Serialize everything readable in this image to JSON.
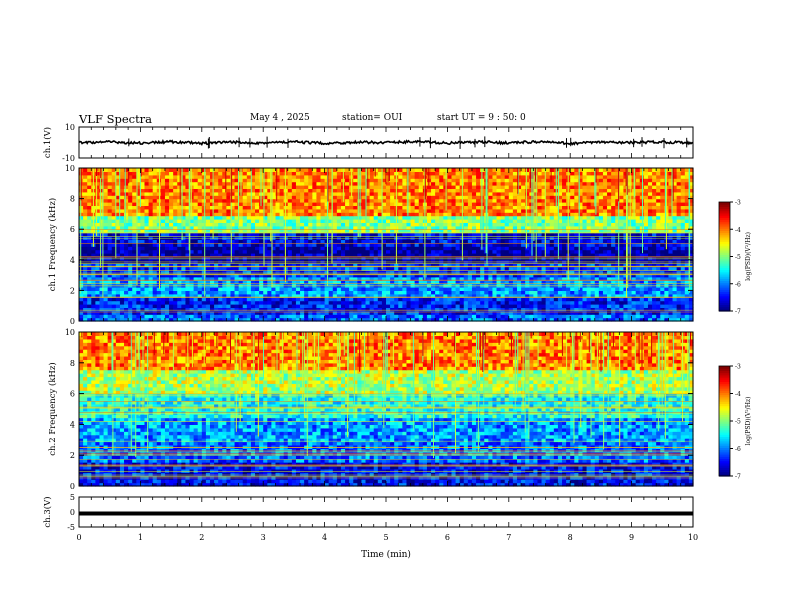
{
  "header": {
    "title": "VLF Spectra",
    "date": "May 4 , 2025",
    "station": "station= OUI",
    "start": "start UT =  9 : 50: 0"
  },
  "chart_data": [
    {
      "type": "line",
      "panel": "ch1-waveform",
      "ylabel": "ch.1(V)",
      "ylim": [
        -10,
        10
      ],
      "yticks": [
        "10",
        "-10"
      ],
      "xlim": [
        0,
        10
      ],
      "series": [
        {
          "values": [
            0,
            0.3,
            -0.4,
            0.5,
            -0.6,
            0.2,
            -0.3,
            0.4,
            -0.5,
            0.1,
            0,
            0.6,
            -0.4,
            0.3,
            -0.2,
            0.5,
            -0.6,
            0.2,
            -0.1,
            0.4,
            -0.3
          ]
        }
      ]
    },
    {
      "type": "heatmap",
      "panel": "ch1-spectrogram",
      "ylabel": "ch.1 Frequency (kHz)",
      "xlim": [
        0,
        10
      ],
      "ylim": [
        0,
        10
      ],
      "yticks": [
        "0",
        "2",
        "4",
        "6",
        "8",
        "10"
      ],
      "colorbar": {
        "label": "log(PSD)(V²/Hz)",
        "range": [
          -7,
          -3
        ],
        "ticks": [
          "-3",
          "-4",
          "-5",
          "-6",
          "-7"
        ]
      },
      "bands": [
        {
          "from": 7.0,
          "to": 10.0,
          "value": -4.0
        },
        {
          "from": 5.8,
          "to": 7.0,
          "value": -5.0
        },
        {
          "from": 4.8,
          "to": 5.8,
          "value": -6.6
        },
        {
          "from": 3.8,
          "to": 4.8,
          "value": -6.9
        },
        {
          "from": 2.8,
          "to": 3.8,
          "value": -6.3
        },
        {
          "from": 1.5,
          "to": 2.8,
          "value": -5.9
        },
        {
          "from": 0.5,
          "to": 1.5,
          "value": -6.4
        },
        {
          "from": 0.0,
          "to": 0.5,
          "value": -6.1
        }
      ]
    },
    {
      "type": "heatmap",
      "panel": "ch2-spectrogram",
      "ylabel": "ch.2 Frequency (kHz)",
      "xlim": [
        0,
        10
      ],
      "ylim": [
        0,
        10
      ],
      "yticks": [
        "0",
        "2",
        "4",
        "6",
        "8",
        "10"
      ],
      "colorbar": {
        "label": "log(PSD)(V²/Hz)",
        "range": [
          -7,
          -3
        ],
        "ticks": [
          "-3",
          "-4",
          "-5",
          "-6",
          "-7"
        ]
      },
      "bands": [
        {
          "from": 7.5,
          "to": 10.0,
          "value": -4.0
        },
        {
          "from": 6.0,
          "to": 7.5,
          "value": -4.8
        },
        {
          "from": 4.5,
          "to": 6.0,
          "value": -5.4
        },
        {
          "from": 3.0,
          "to": 4.5,
          "value": -5.9
        },
        {
          "from": 1.5,
          "to": 3.0,
          "value": -6.1
        },
        {
          "from": 0.0,
          "to": 1.5,
          "value": -6.5
        }
      ]
    },
    {
      "type": "line",
      "panel": "ch3-waveform",
      "ylabel": "ch.3(V)",
      "ylim": [
        -5,
        5
      ],
      "yticks": [
        "5",
        "0",
        "-5"
      ],
      "xlim": [
        0,
        10
      ],
      "xlabel": "Time (min)",
      "xticks": [
        "0",
        "1",
        "2",
        "3",
        "4",
        "5",
        "6",
        "7",
        "8",
        "9",
        "10"
      ],
      "series": [
        {
          "values": [
            -0.5,
            -0.5
          ]
        }
      ]
    }
  ]
}
